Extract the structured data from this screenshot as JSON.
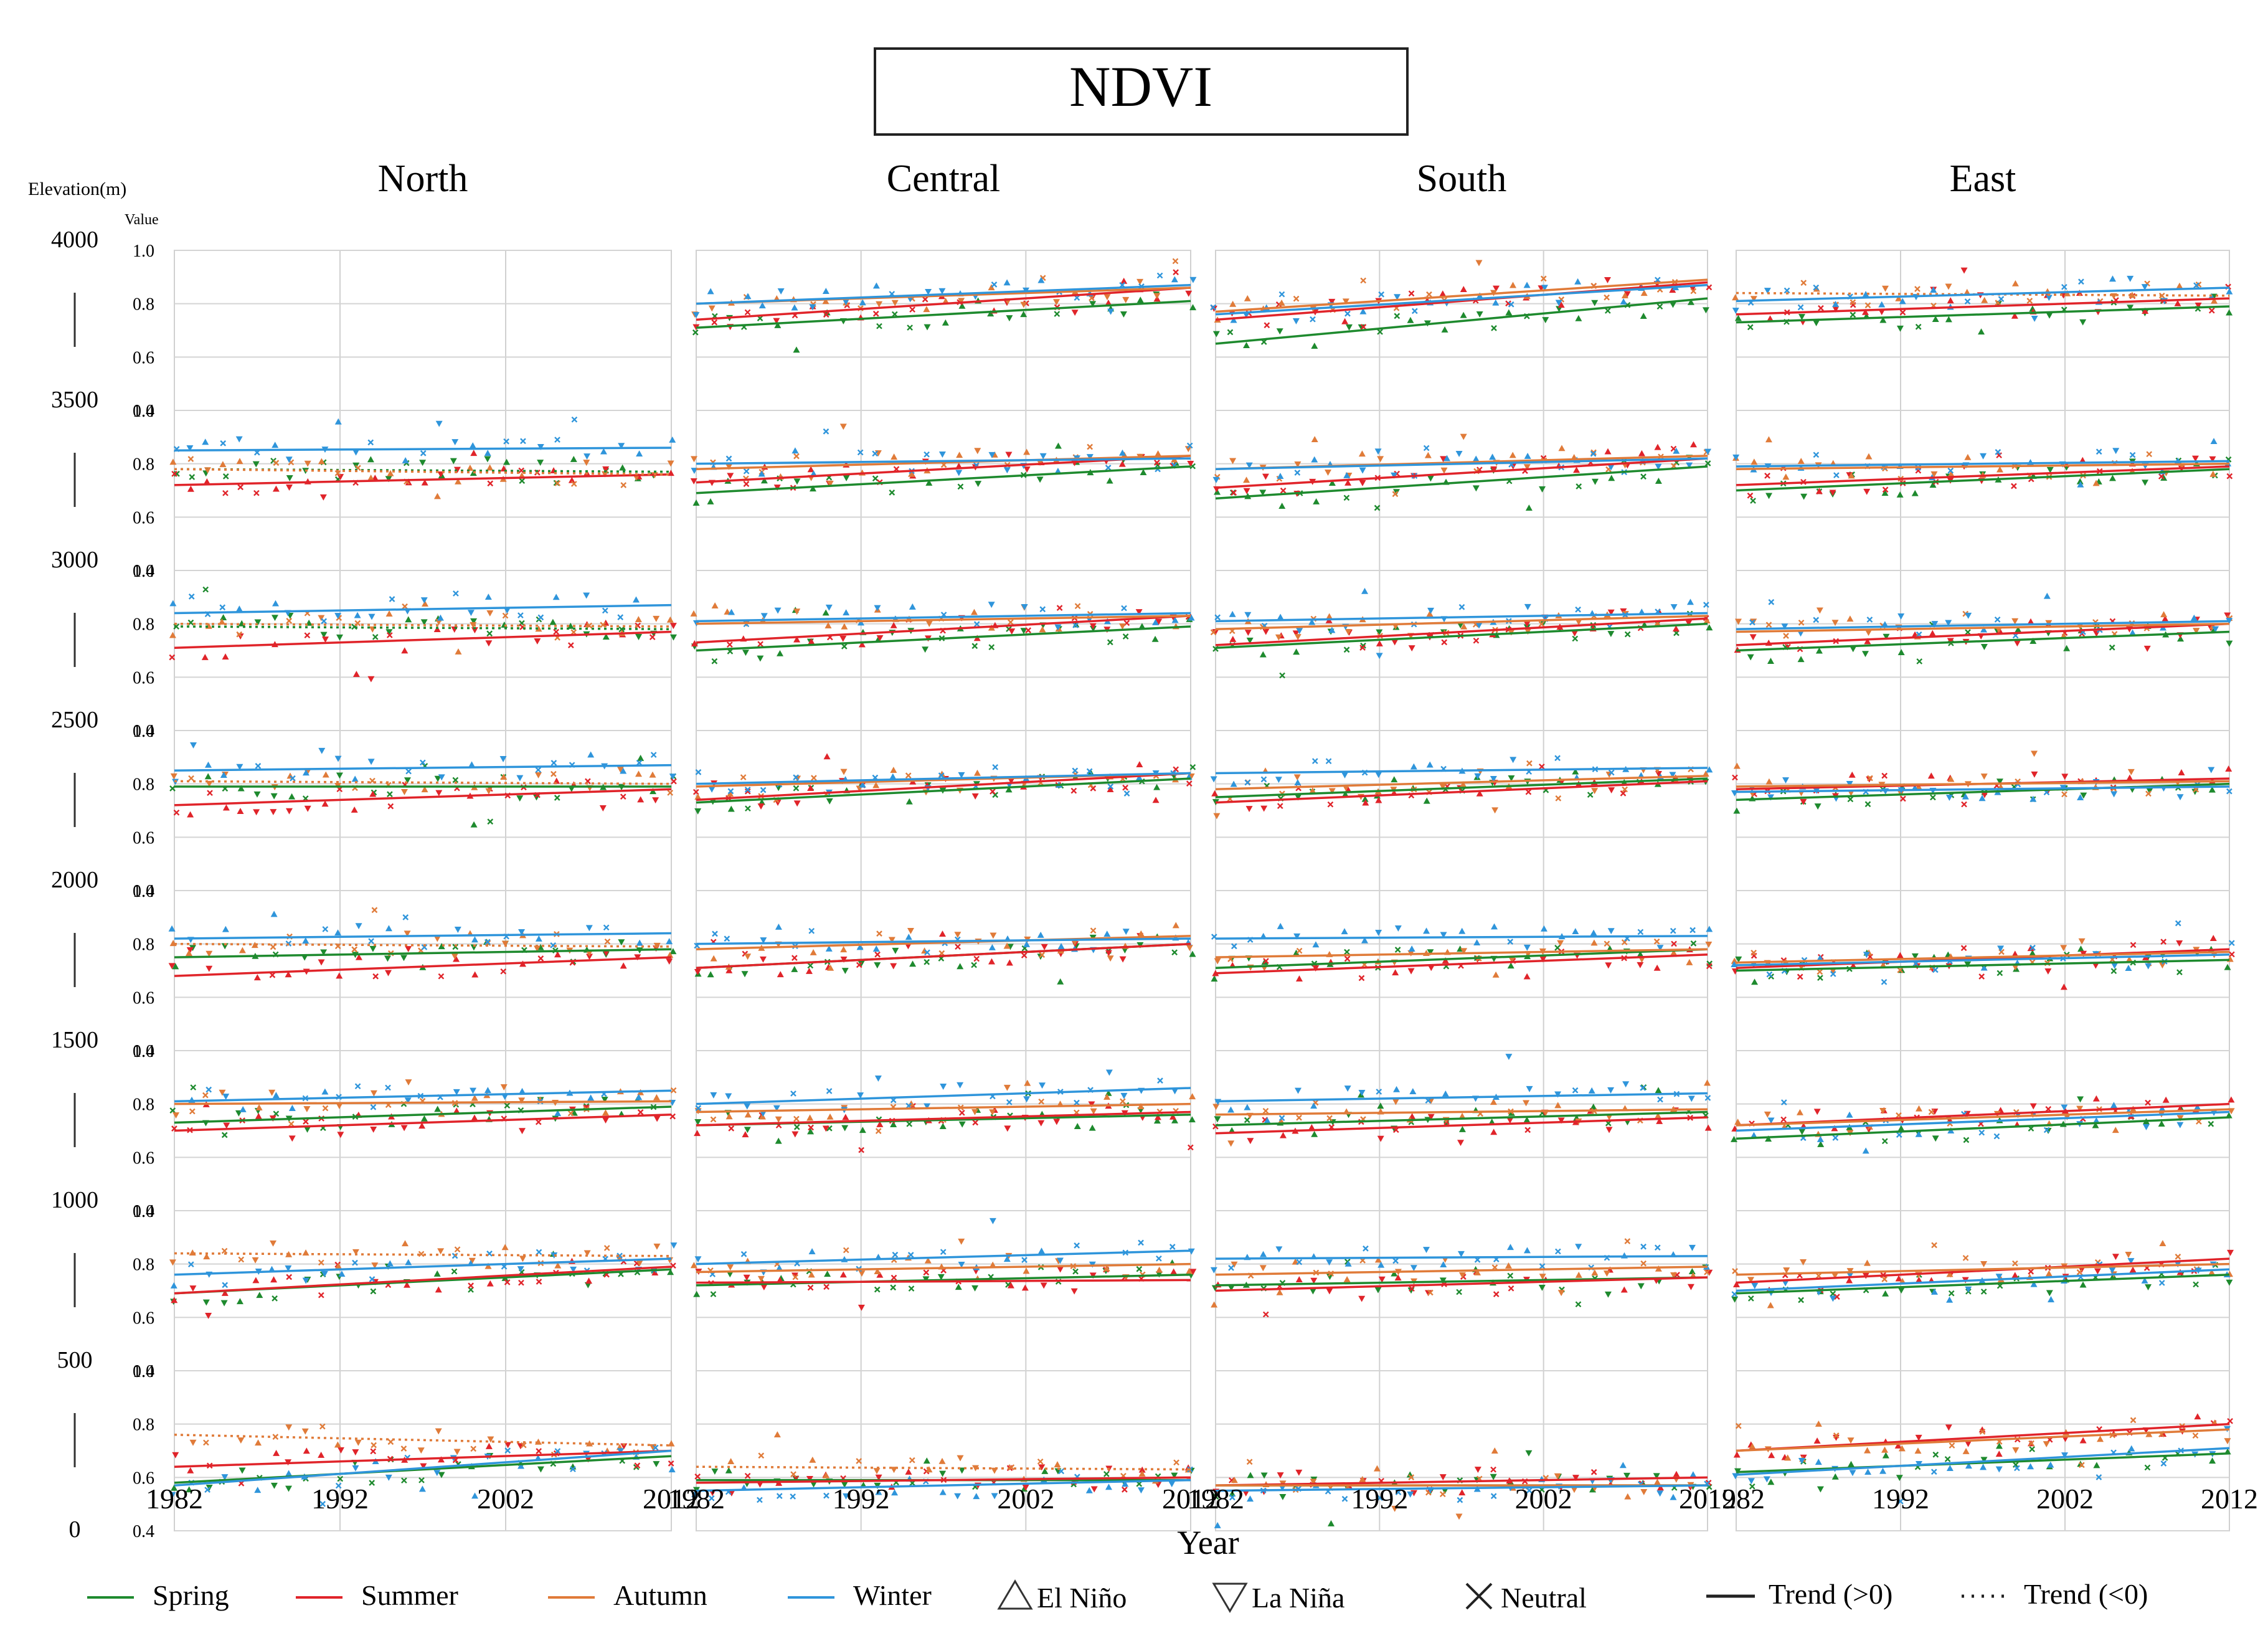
{
  "chart_data": {
    "type": "scatter",
    "title": "NDVI",
    "ylabel_elevation": "Elevation(m)",
    "ylabel_value": "Value",
    "xlabel": "Year",
    "columns": [
      "North",
      "Central",
      "South",
      "East"
    ],
    "elevation_ticks": [
      "4000",
      "3500",
      "3000",
      "2500",
      "2000",
      "1500",
      "1000",
      "500",
      "0"
    ],
    "value_ticks": [
      "1.0",
      "0.8",
      "0.6",
      "0.4"
    ],
    "year_ticks": [
      "1982",
      "1992",
      "2002",
      "2012"
    ],
    "xlim": [
      1982,
      2012
    ],
    "ylim": [
      0.4,
      1.0
    ],
    "grid": true,
    "legend_position": "bottom",
    "seasons": [
      {
        "name": "Spring",
        "color": "#1e8a2e"
      },
      {
        "name": "Summer",
        "color": "#e0242a"
      },
      {
        "name": "Autumn",
        "color": "#e07b39"
      },
      {
        "name": "Winter",
        "color": "#2f95db"
      }
    ],
    "markers": [
      {
        "name": "El Niño",
        "symbol": "triangle-up"
      },
      {
        "name": "La Niña",
        "symbol": "triangle-down"
      },
      {
        "name": "Neutral",
        "symbol": "x"
      }
    ],
    "trend_legend": [
      {
        "name": "Trend (>0)",
        "style": "solid"
      },
      {
        "name": "Trend (<0)",
        "style": "dotted"
      }
    ],
    "trend_lines": {
      "North": [
        null,
        {
          "Spring": [
            0.78,
            0.77
          ],
          "Summer": [
            0.72,
            0.76
          ],
          "Autumn": [
            0.78,
            0.76
          ],
          "Winter": [
            0.85,
            0.86
          ]
        },
        {
          "Spring": [
            0.79,
            0.78
          ],
          "Summer": [
            0.71,
            0.77
          ],
          "Autumn": [
            0.8,
            0.79
          ],
          "Winter": [
            0.84,
            0.87
          ]
        },
        {
          "Spring": [
            0.79,
            0.79
          ],
          "Summer": [
            0.72,
            0.78
          ],
          "Autumn": [
            0.81,
            0.8
          ],
          "Winter": [
            0.85,
            0.87
          ]
        },
        {
          "Spring": [
            0.75,
            0.78
          ],
          "Summer": [
            0.68,
            0.75
          ],
          "Autumn": [
            0.8,
            0.79
          ],
          "Winter": [
            0.82,
            0.84
          ]
        },
        {
          "Spring": [
            0.73,
            0.79
          ],
          "Summer": [
            0.7,
            0.76
          ],
          "Autumn": [
            0.8,
            0.81
          ],
          "Winter": [
            0.81,
            0.85
          ]
        },
        {
          "Spring": [
            0.69,
            0.78
          ],
          "Summer": [
            0.69,
            0.79
          ],
          "Autumn": [
            0.84,
            0.83
          ],
          "Winter": [
            0.76,
            0.82
          ]
        },
        {
          "Spring": [
            0.58,
            0.68
          ],
          "Summer": [
            0.64,
            0.7
          ],
          "Autumn": [
            0.76,
            0.72
          ],
          "Winter": [
            0.57,
            0.7
          ]
        }
      ],
      "Central": [
        {
          "Spring": [
            0.71,
            0.81
          ],
          "Summer": [
            0.74,
            0.86
          ],
          "Autumn": [
            0.8,
            0.86
          ],
          "Winter": [
            0.8,
            0.87
          ]
        },
        {
          "Spring": [
            0.69,
            0.79
          ],
          "Summer": [
            0.73,
            0.83
          ],
          "Autumn": [
            0.78,
            0.83
          ],
          "Winter": [
            0.8,
            0.82
          ]
        },
        {
          "Spring": [
            0.7,
            0.79
          ],
          "Summer": [
            0.73,
            0.83
          ],
          "Autumn": [
            0.8,
            0.83
          ],
          "Winter": [
            0.81,
            0.84
          ]
        },
        {
          "Spring": [
            0.73,
            0.82
          ],
          "Summer": [
            0.74,
            0.84
          ],
          "Autumn": [
            0.79,
            0.84
          ],
          "Winter": [
            0.8,
            0.84
          ]
        },
        {
          "Spring": [
            0.71,
            0.8
          ],
          "Summer": [
            0.71,
            0.8
          ],
          "Autumn": [
            0.78,
            0.83
          ],
          "Winter": [
            0.8,
            0.82
          ]
        },
        {
          "Spring": [
            0.72,
            0.76
          ],
          "Summer": [
            0.72,
            0.77
          ],
          "Autumn": [
            0.77,
            0.8
          ],
          "Winter": [
            0.8,
            0.86
          ]
        },
        {
          "Spring": [
            0.72,
            0.76
          ],
          "Summer": [
            0.73,
            0.74
          ],
          "Autumn": [
            0.77,
            0.8
          ],
          "Winter": [
            0.8,
            0.85
          ]
        },
        {
          "Spring": [
            0.59,
            0.59
          ],
          "Summer": [
            0.58,
            0.6
          ],
          "Autumn": [
            0.64,
            0.63
          ],
          "Winter": [
            0.55,
            0.59
          ]
        }
      ],
      "South": [
        {
          "Spring": [
            0.65,
            0.82
          ],
          "Summer": [
            0.74,
            0.88
          ],
          "Autumn": [
            0.77,
            0.89
          ],
          "Winter": [
            0.76,
            0.87
          ]
        },
        {
          "Spring": [
            0.67,
            0.79
          ],
          "Summer": [
            0.71,
            0.82
          ],
          "Autumn": [
            0.78,
            0.83
          ],
          "Winter": [
            0.78,
            0.82
          ]
        },
        {
          "Spring": [
            0.71,
            0.8
          ],
          "Summer": [
            0.72,
            0.82
          ],
          "Autumn": [
            0.78,
            0.83
          ],
          "Winter": [
            0.81,
            0.84
          ]
        },
        {
          "Spring": [
            0.75,
            0.82
          ],
          "Summer": [
            0.73,
            0.81
          ],
          "Autumn": [
            0.78,
            0.83
          ],
          "Winter": [
            0.84,
            0.86
          ]
        },
        {
          "Spring": [
            0.71,
            0.78
          ],
          "Summer": [
            0.69,
            0.76
          ],
          "Autumn": [
            0.75,
            0.78
          ],
          "Winter": [
            0.82,
            0.83
          ]
        },
        {
          "Spring": [
            0.72,
            0.77
          ],
          "Summer": [
            0.69,
            0.75
          ],
          "Autumn": [
            0.76,
            0.78
          ],
          "Winter": [
            0.81,
            0.84
          ]
        },
        {
          "Spring": [
            0.72,
            0.75
          ],
          "Summer": [
            0.7,
            0.75
          ],
          "Autumn": [
            0.76,
            0.79
          ],
          "Winter": [
            0.82,
            0.83
          ]
        },
        {
          "Spring": [
            0.57,
            0.57
          ],
          "Summer": [
            0.57,
            0.6
          ],
          "Autumn": [
            0.57,
            0.57
          ],
          "Winter": [
            0.55,
            0.57
          ]
        }
      ],
      "East": [
        {
          "Spring": [
            0.73,
            0.79
          ],
          "Summer": [
            0.76,
            0.82
          ],
          "Autumn": [
            0.84,
            0.83
          ],
          "Winter": [
            0.81,
            0.86
          ]
        },
        {
          "Spring": [
            0.7,
            0.78
          ],
          "Summer": [
            0.72,
            0.79
          ],
          "Autumn": [
            0.78,
            0.8
          ],
          "Winter": [
            0.79,
            0.81
          ]
        },
        {
          "Spring": [
            0.7,
            0.77
          ],
          "Summer": [
            0.72,
            0.8
          ],
          "Autumn": [
            0.77,
            0.8
          ],
          "Winter": [
            0.78,
            0.81
          ]
        },
        {
          "Spring": [
            0.74,
            0.8
          ],
          "Summer": [
            0.78,
            0.82
          ],
          "Autumn": [
            0.79,
            0.81
          ],
          "Winter": [
            0.77,
            0.79
          ]
        },
        {
          "Spring": [
            0.7,
            0.74
          ],
          "Summer": [
            0.71,
            0.78
          ],
          "Autumn": [
            0.73,
            0.77
          ],
          "Winter": [
            0.72,
            0.76
          ]
        },
        {
          "Spring": [
            0.67,
            0.75
          ],
          "Summer": [
            0.72,
            0.8
          ],
          "Autumn": [
            0.72,
            0.78
          ],
          "Winter": [
            0.7,
            0.77
          ]
        },
        {
          "Spring": [
            0.69,
            0.76
          ],
          "Summer": [
            0.73,
            0.82
          ],
          "Autumn": [
            0.76,
            0.8
          ],
          "Winter": [
            0.7,
            0.78
          ]
        },
        {
          "Spring": [
            0.62,
            0.69
          ],
          "Summer": [
            0.7,
            0.8
          ],
          "Autumn": [
            0.7,
            0.78
          ],
          "Winter": [
            0.61,
            0.71
          ]
        }
      ]
    }
  }
}
